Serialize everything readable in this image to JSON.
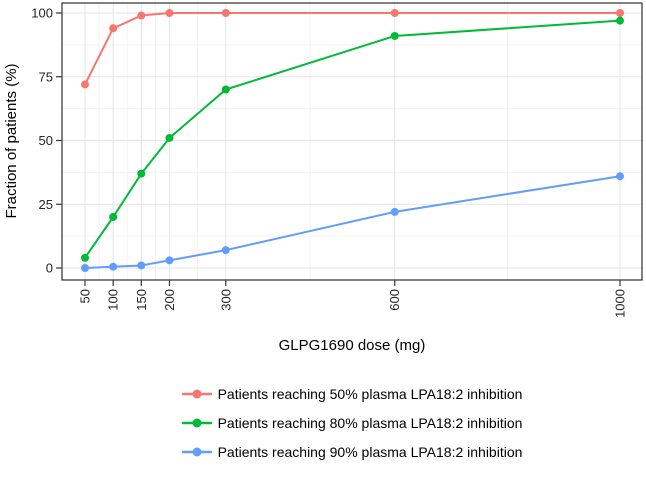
{
  "chart_data": {
    "type": "line",
    "title": "",
    "xlabel": "GLPG1690 dose (mg)",
    "ylabel": "Fraction of patients (%)",
    "x": [
      50,
      100,
      150,
      200,
      300,
      600,
      1000
    ],
    "x_tick_labels": [
      "50",
      "100",
      "150",
      "200",
      "300",
      "600",
      "1000"
    ],
    "y_ticks": [
      0,
      25,
      50,
      75,
      100
    ],
    "ylim": [
      0,
      100
    ],
    "grid": "major and minor horizontal+vertical gridlines, light gray on white, black panel border",
    "legend_position": "bottom-center",
    "series": [
      {
        "name": "Patients reaching 50% plasma LPA18:2 inhibition",
        "color": "#F8766D",
        "values": [
          72,
          94,
          99,
          100,
          100,
          100,
          100
        ]
      },
      {
        "name": "Patients reaching 80% plasma LPA18:2 inhibition",
        "color": "#00BA38",
        "values": [
          4,
          20,
          37,
          51,
          70,
          91,
          97
        ]
      },
      {
        "name": "Patients reaching 90% plasma LPA18:2 inhibition",
        "color": "#619CFF",
        "values": [
          0,
          0.5,
          1,
          3,
          7,
          22,
          36
        ]
      }
    ],
    "panel_border_color": "#2e2e2e",
    "major_grid_color": "#e5e5e5",
    "minor_grid_color": "#f3f3f3",
    "tick_color": "#333333"
  }
}
